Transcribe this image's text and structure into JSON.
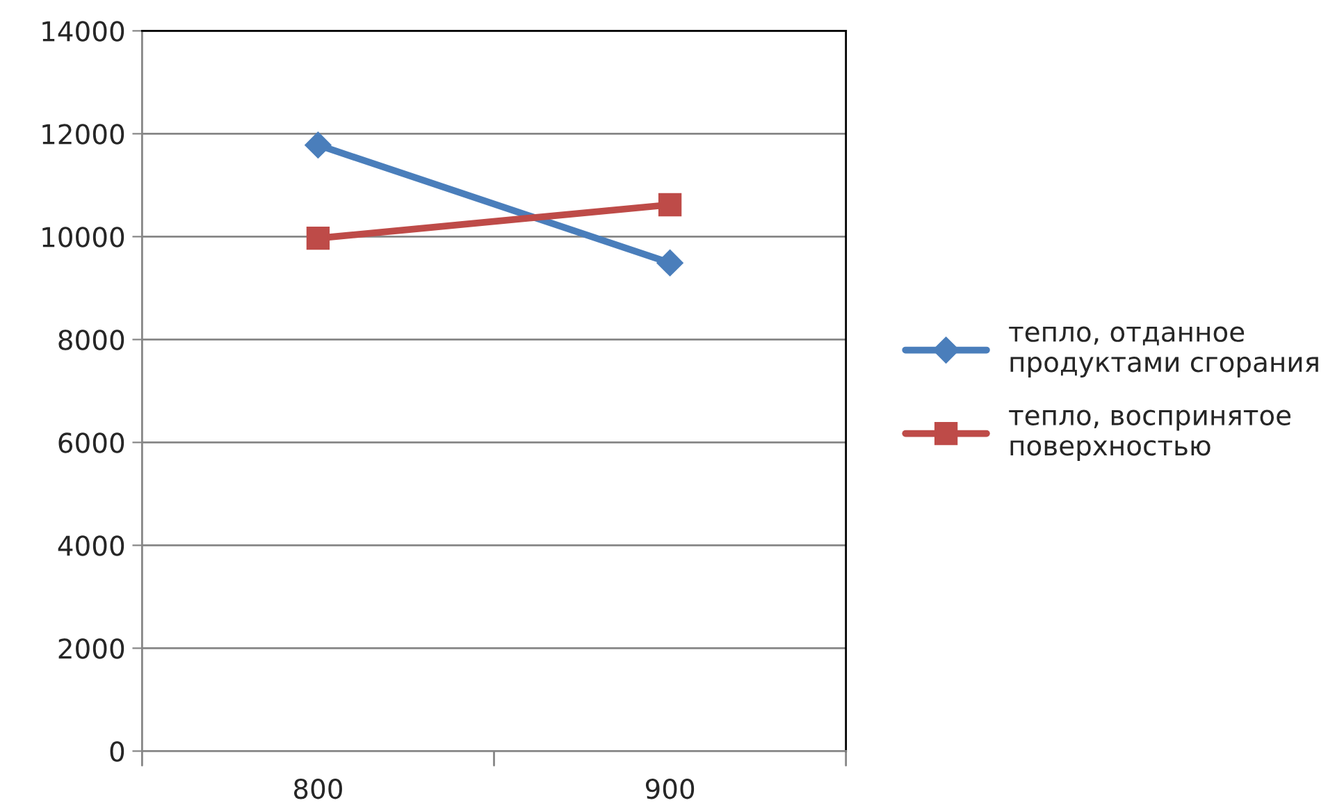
{
  "chart_data": {
    "type": "line",
    "categories": [
      "800",
      "900"
    ],
    "series": [
      {
        "name": "тепло, отданное\nпродуктами сгорания",
        "color": "#4a7ebb",
        "values": [
          11780,
          9490
        ],
        "marker": "diamond"
      },
      {
        "name": "тепло, воспринятое\nповерхностью",
        "color": "#be4b48",
        "values": [
          9970,
          10620
        ],
        "marker": "square"
      }
    ],
    "ylim": [
      0,
      14000
    ],
    "yticks": [
      0,
      2000,
      4000,
      6000,
      8000,
      10000,
      12000,
      14000
    ],
    "grid": "y",
    "legend": "right",
    "line_style": "solid"
  }
}
